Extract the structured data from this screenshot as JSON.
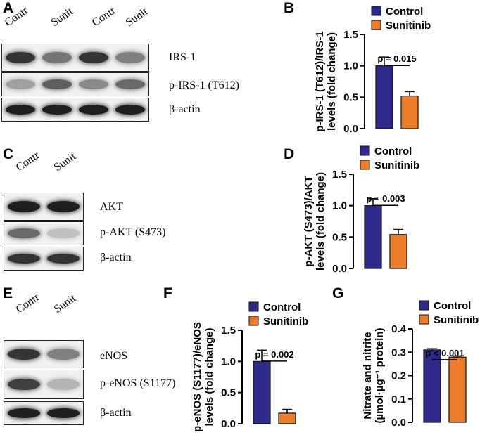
{
  "panels": {
    "A": {
      "label": "A",
      "lanes": [
        "Contr",
        "Sunit",
        "Contr",
        "Sunit"
      ],
      "rows": [
        {
          "name": "IRS-1",
          "intensities": [
            0.85,
            0.55,
            0.85,
            0.5
          ]
        },
        {
          "name": "p-IRS-1 (T612)",
          "intensities": [
            0.35,
            0.65,
            0.45,
            0.6
          ]
        },
        {
          "name": "β-actin",
          "intensities": [
            0.95,
            0.95,
            0.95,
            0.95
          ]
        }
      ]
    },
    "C": {
      "label": "C",
      "lanes": [
        "Contr",
        "Sunit"
      ],
      "rows": [
        {
          "name": "AKT",
          "intensities": [
            0.95,
            0.95
          ]
        },
        {
          "name": "p-AKT (S473)",
          "intensities": [
            0.6,
            0.2
          ]
        },
        {
          "name": "β-actin",
          "intensities": [
            0.85,
            0.85
          ]
        }
      ]
    },
    "E": {
      "label": "E",
      "lanes": [
        "Contr",
        "Sunit"
      ],
      "rows": [
        {
          "name": "eNOS",
          "intensities": [
            0.85,
            0.5
          ]
        },
        {
          "name": "p-eNOS (S1177)",
          "intensities": [
            0.8,
            0.25
          ]
        },
        {
          "name": "β-actin",
          "intensities": [
            0.95,
            0.95
          ]
        }
      ]
    }
  },
  "colors": {
    "control": "#2e2a8c",
    "sunitinib": "#ee7d2b"
  },
  "chart_data": [
    {
      "type": "bar",
      "panel": "B",
      "categories": [
        "Control",
        "Sunitinib"
      ],
      "values": [
        1.0,
        0.52
      ],
      "errors": [
        0.14,
        0.07
      ],
      "ylabel_lines": [
        "p-IRS-1 (T612)/IRS-1",
        "levels (fold change)"
      ],
      "ylim": [
        0,
        1.5
      ],
      "yticks": [
        "0.0",
        "0.5",
        "1.0",
        "1.5"
      ],
      "pvalue": "p = 0.015",
      "legend": [
        "Control",
        "Sunitinib"
      ]
    },
    {
      "type": "bar",
      "panel": "D",
      "categories": [
        "Control",
        "Sunitinib"
      ],
      "values": [
        1.0,
        0.54
      ],
      "errors": [
        0.11,
        0.08
      ],
      "ylabel_lines": [
        "p-AKT (S473)/AKT",
        "levels (fold change)"
      ],
      "ylim": [
        0,
        1.5
      ],
      "yticks": [
        "0.0",
        "0.5",
        "1.0",
        "1.5"
      ],
      "pvalue": "p = 0.003",
      "legend": [
        "Control",
        "Sunitinib"
      ]
    },
    {
      "type": "bar",
      "panel": "F",
      "categories": [
        "Control",
        "Sunitinib"
      ],
      "values": [
        1.0,
        0.17
      ],
      "errors": [
        0.18,
        0.06
      ],
      "ylabel_lines": [
        "p-eNOS (S1177)/eNOS",
        "levels (fold change)"
      ],
      "ylim": [
        0,
        1.5
      ],
      "yticks": [
        "0.0",
        "0.5",
        "1.0",
        "1.5"
      ],
      "pvalue": "p = 0.002",
      "legend": [
        "Control",
        "Sunitinib"
      ]
    },
    {
      "type": "bar",
      "panel": "G",
      "categories": [
        "Control",
        "Sunitinib"
      ],
      "values": [
        0.31,
        0.279
      ],
      "errors": [
        0.005,
        0.005
      ],
      "ylabel_lines": [
        "Nitrate and nitrite",
        "(µmol·µg⁻¹ protein)"
      ],
      "ylim": [
        0,
        0.4
      ],
      "yticks": [
        "0.0",
        "0.1",
        "0.2",
        "0.3",
        "0.4"
      ],
      "pvalue": "p < 0.001",
      "legend": [
        "Control",
        "Sunitinib"
      ]
    }
  ]
}
